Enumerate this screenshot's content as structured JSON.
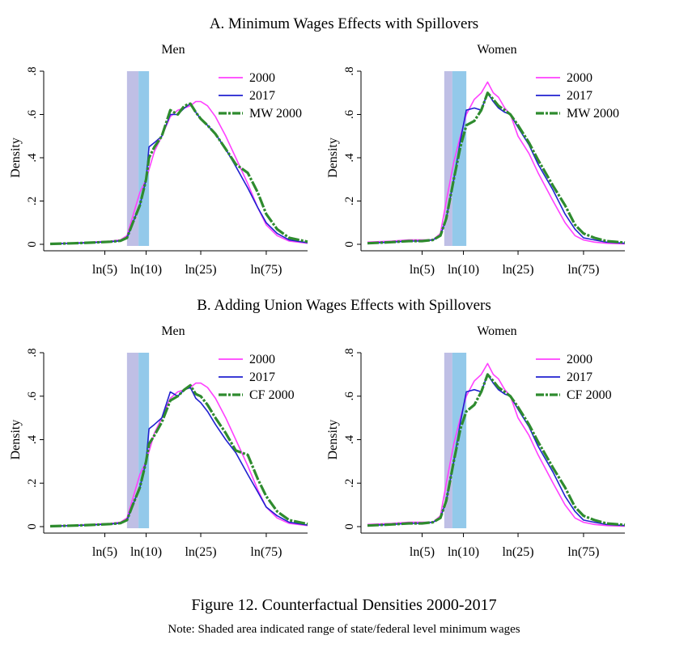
{
  "figure": {
    "title": "Figure 12. Counterfactual Densities 2000-2017",
    "note": "Note: Shaded area indicated range of state/federal level minimum wages"
  },
  "colors": {
    "y2000": "#ff40ff",
    "y2017": "#2020d0",
    "counterfactual": "#2e8b2e",
    "shade_low": "#a9a9dc",
    "shade_high": "#80bfe6"
  },
  "chart_data": [
    {
      "panel_title": "A. Minimum Wages Effects with Spillovers",
      "charts": [
        {
          "type": "line",
          "title": "Men",
          "ylabel": "Density",
          "x_ticks": [
            "ln(5)",
            "ln(10)",
            "ln(25)",
            "ln(75)"
          ],
          "x_tick_wages": [
            5,
            10,
            25,
            75
          ],
          "y_ticks": [
            "0",
            ".2",
            ".4",
            ".6",
            ".8"
          ],
          "y_tick_values": [
            0,
            0.2,
            0.4,
            0.6,
            0.8
          ],
          "xlim_wage": [
            2,
            150
          ],
          "ylim": [
            0,
            0.8
          ],
          "shaded_range_wage": [
            7.25,
            10.5
          ],
          "shade_split_wage": 8.8,
          "legend": [
            "2000",
            "2017",
            "MW 2000"
          ],
          "series": [
            {
              "name": "2000",
              "x_wage": [
                2,
                3,
                4,
                5.5,
                6.5,
                7.25,
                8,
                9,
                10,
                11.5,
                13,
                15,
                17,
                19,
                21,
                23,
                25,
                28,
                32,
                38,
                45,
                55,
                65,
                75,
                90,
                110,
                150
              ],
              "y": [
                0.003,
                0.006,
                0.01,
                0.015,
                0.02,
                0.04,
                0.13,
                0.24,
                0.3,
                0.43,
                0.5,
                0.59,
                0.62,
                0.63,
                0.64,
                0.66,
                0.66,
                0.64,
                0.59,
                0.5,
                0.4,
                0.28,
                0.17,
                0.09,
                0.04,
                0.015,
                0.005
              ]
            },
            {
              "name": "2017",
              "x_wage": [
                2,
                3,
                4,
                5.5,
                6.5,
                7.25,
                8,
                9,
                10,
                10.5,
                11.5,
                13,
                15,
                17,
                19,
                21,
                23,
                25,
                28,
                32,
                38,
                45,
                55,
                65,
                75,
                90,
                110,
                150
              ],
              "y": [
                0.002,
                0.005,
                0.008,
                0.012,
                0.016,
                0.03,
                0.1,
                0.18,
                0.3,
                0.45,
                0.47,
                0.5,
                0.6,
                0.6,
                0.63,
                0.65,
                0.61,
                0.58,
                0.55,
                0.51,
                0.44,
                0.36,
                0.26,
                0.17,
                0.1,
                0.05,
                0.02,
                0.007
              ]
            },
            {
              "name": "MW 2000",
              "x_wage": [
                2,
                3,
                4,
                5.5,
                6.5,
                7.25,
                8,
                9,
                10,
                10.5,
                11.5,
                13,
                15,
                17,
                19,
                21,
                23,
                25,
                28,
                32,
                38,
                45,
                55,
                65,
                75,
                90,
                110,
                150
              ],
              "y": [
                0.002,
                0.005,
                0.008,
                0.012,
                0.016,
                0.03,
                0.1,
                0.18,
                0.3,
                0.4,
                0.45,
                0.5,
                0.62,
                0.6,
                0.64,
                0.65,
                0.61,
                0.58,
                0.55,
                0.51,
                0.44,
                0.37,
                0.33,
                0.24,
                0.14,
                0.07,
                0.03,
                0.012
              ]
            }
          ]
        },
        {
          "type": "line",
          "title": "Women",
          "ylabel": "Density",
          "x_ticks": [
            "ln(5)",
            "ln(10)",
            "ln(25)",
            "ln(75)"
          ],
          "x_tick_wages": [
            5,
            10,
            25,
            75
          ],
          "y_ticks": [
            "0",
            ".2",
            ".4",
            ".6",
            ".8"
          ],
          "y_tick_values": [
            0,
            0.2,
            0.4,
            0.6,
            0.8
          ],
          "xlim_wage": [
            2,
            150
          ],
          "ylim": [
            0,
            0.8
          ],
          "shaded_range_wage": [
            7.25,
            10.5
          ],
          "shade_split_wage": 8.3,
          "legend": [
            "2000",
            "2017",
            "MW 2000"
          ],
          "series": [
            {
              "name": "2000",
              "x_wage": [
                2,
                3,
                4,
                5,
                6,
                6.8,
                7.5,
                8.5,
                9.5,
                10.5,
                12,
                13.5,
                15,
                16.5,
                18,
                20,
                22,
                25,
                30,
                35,
                45,
                55,
                65,
                75,
                90,
                110,
                150
              ],
              "y": [
                0.01,
                0.015,
                0.02,
                0.02,
                0.02,
                0.05,
                0.2,
                0.38,
                0.5,
                0.6,
                0.67,
                0.7,
                0.75,
                0.7,
                0.68,
                0.63,
                0.6,
                0.5,
                0.42,
                0.33,
                0.2,
                0.1,
                0.04,
                0.02,
                0.01,
                0.005,
                0.002
              ]
            },
            {
              "name": "2017",
              "x_wage": [
                2,
                3,
                4,
                5,
                6,
                6.8,
                7.5,
                8.5,
                9.5,
                10.5,
                12,
                13.5,
                15,
                16.5,
                18,
                20,
                22,
                25,
                30,
                35,
                45,
                55,
                65,
                75,
                90,
                110,
                150
              ],
              "y": [
                0.005,
                0.01,
                0.015,
                0.015,
                0.02,
                0.04,
                0.12,
                0.3,
                0.48,
                0.62,
                0.63,
                0.62,
                0.7,
                0.66,
                0.63,
                0.61,
                0.6,
                0.54,
                0.46,
                0.37,
                0.25,
                0.14,
                0.07,
                0.03,
                0.02,
                0.01,
                0.005
              ]
            },
            {
              "name": "MW 2000",
              "x_wage": [
                2,
                3,
                4,
                5,
                6,
                6.8,
                7.5,
                8.5,
                9.5,
                10.5,
                12,
                13.5,
                15,
                16.5,
                18,
                20,
                22,
                25,
                30,
                35,
                45,
                55,
                65,
                75,
                90,
                110,
                150
              ],
              "y": [
                0.005,
                0.01,
                0.015,
                0.015,
                0.02,
                0.04,
                0.12,
                0.3,
                0.45,
                0.55,
                0.57,
                0.62,
                0.7,
                0.67,
                0.64,
                0.62,
                0.6,
                0.55,
                0.47,
                0.39,
                0.27,
                0.18,
                0.09,
                0.05,
                0.03,
                0.015,
                0.008
              ]
            }
          ]
        }
      ]
    },
    {
      "panel_title": "B. Adding Union Wages Effects with Spillovers",
      "charts": [
        {
          "type": "line",
          "title": "Men",
          "ylabel": "Density",
          "x_ticks": [
            "ln(5)",
            "ln(10)",
            "ln(25)",
            "ln(75)"
          ],
          "x_tick_wages": [
            5,
            10,
            25,
            75
          ],
          "y_ticks": [
            "0",
            ".2",
            ".4",
            ".6",
            ".8"
          ],
          "y_tick_values": [
            0,
            0.2,
            0.4,
            0.6,
            0.8
          ],
          "xlim_wage": [
            2,
            150
          ],
          "ylim": [
            0,
            0.8
          ],
          "shaded_range_wage": [
            7.25,
            10.5
          ],
          "shade_split_wage": 8.8,
          "legend": [
            "2000",
            "2017",
            "CF 2000"
          ],
          "series": [
            {
              "name": "2000",
              "x_wage": [
                2,
                3,
                4,
                5.5,
                6.5,
                7.25,
                8,
                9,
                10,
                11.5,
                13,
                15,
                17,
                19,
                21,
                23,
                25,
                28,
                32,
                38,
                45,
                55,
                65,
                75,
                90,
                110,
                150
              ],
              "y": [
                0.003,
                0.006,
                0.01,
                0.015,
                0.02,
                0.04,
                0.13,
                0.24,
                0.3,
                0.43,
                0.5,
                0.59,
                0.62,
                0.63,
                0.64,
                0.66,
                0.66,
                0.64,
                0.59,
                0.5,
                0.4,
                0.28,
                0.17,
                0.09,
                0.04,
                0.015,
                0.005
              ]
            },
            {
              "name": "2017",
              "x_wage": [
                2,
                3,
                4,
                5.5,
                6.5,
                7.25,
                8,
                9,
                10,
                10.5,
                11.5,
                13,
                15,
                17,
                19,
                21,
                23,
                25,
                28,
                32,
                38,
                45,
                55,
                65,
                75,
                90,
                110,
                150
              ],
              "y": [
                0.002,
                0.005,
                0.008,
                0.012,
                0.016,
                0.03,
                0.1,
                0.18,
                0.3,
                0.45,
                0.47,
                0.5,
                0.62,
                0.6,
                0.63,
                0.64,
                0.59,
                0.57,
                0.53,
                0.47,
                0.4,
                0.34,
                0.24,
                0.16,
                0.09,
                0.05,
                0.02,
                0.007
              ]
            },
            {
              "name": "CF 2000",
              "x_wage": [
                2,
                3,
                4,
                5.5,
                6.5,
                7.25,
                8,
                9,
                10,
                10.5,
                11.5,
                13,
                15,
                17,
                19,
                21,
                23,
                25,
                28,
                32,
                38,
                45,
                55,
                65,
                75,
                90,
                110,
                150
              ],
              "y": [
                0.002,
                0.005,
                0.008,
                0.012,
                0.016,
                0.03,
                0.1,
                0.18,
                0.3,
                0.38,
                0.42,
                0.48,
                0.58,
                0.6,
                0.63,
                0.65,
                0.61,
                0.6,
                0.56,
                0.5,
                0.43,
                0.35,
                0.33,
                0.22,
                0.14,
                0.07,
                0.03,
                0.012
              ]
            }
          ]
        },
        {
          "type": "line",
          "title": "Women",
          "ylabel": "Density",
          "x_ticks": [
            "ln(5)",
            "ln(10)",
            "ln(25)",
            "ln(75)"
          ],
          "x_tick_wages": [
            5,
            10,
            25,
            75
          ],
          "y_ticks": [
            "0",
            ".2",
            ".4",
            ".6",
            ".8"
          ],
          "y_tick_values": [
            0,
            0.2,
            0.4,
            0.6,
            0.8
          ],
          "xlim_wage": [
            2,
            150
          ],
          "ylim": [
            0,
            0.8
          ],
          "shaded_range_wage": [
            7.25,
            10.5
          ],
          "shade_split_wage": 8.3,
          "legend": [
            "2000",
            "2017",
            "CF 2000"
          ],
          "series": [
            {
              "name": "2000",
              "x_wage": [
                2,
                3,
                4,
                5,
                6,
                6.8,
                7.5,
                8.5,
                9.5,
                10.5,
                12,
                13.5,
                15,
                16.5,
                18,
                20,
                22,
                25,
                30,
                35,
                45,
                55,
                65,
                75,
                90,
                110,
                150
              ],
              "y": [
                0.01,
                0.015,
                0.02,
                0.02,
                0.02,
                0.05,
                0.2,
                0.38,
                0.5,
                0.6,
                0.67,
                0.7,
                0.75,
                0.7,
                0.68,
                0.63,
                0.6,
                0.5,
                0.42,
                0.33,
                0.2,
                0.1,
                0.04,
                0.02,
                0.01,
                0.005,
                0.002
              ]
            },
            {
              "name": "2017",
              "x_wage": [
                2,
                3,
                4,
                5,
                6,
                6.8,
                7.5,
                8.5,
                9.5,
                10.5,
                12,
                13.5,
                15,
                16.5,
                18,
                20,
                22,
                25,
                30,
                35,
                45,
                55,
                65,
                75,
                90,
                110,
                150
              ],
              "y": [
                0.005,
                0.01,
                0.015,
                0.015,
                0.02,
                0.04,
                0.12,
                0.3,
                0.48,
                0.62,
                0.63,
                0.62,
                0.7,
                0.66,
                0.63,
                0.61,
                0.6,
                0.54,
                0.46,
                0.37,
                0.25,
                0.14,
                0.07,
                0.03,
                0.02,
                0.01,
                0.005
              ]
            },
            {
              "name": "CF 2000",
              "x_wage": [
                2,
                3,
                4,
                5,
                6,
                6.8,
                7.5,
                8.5,
                9.5,
                10.5,
                12,
                13.5,
                15,
                16.5,
                18,
                20,
                22,
                25,
                30,
                35,
                45,
                55,
                65,
                75,
                90,
                110,
                150
              ],
              "y": [
                0.005,
                0.01,
                0.015,
                0.015,
                0.02,
                0.04,
                0.12,
                0.3,
                0.45,
                0.53,
                0.56,
                0.62,
                0.7,
                0.67,
                0.64,
                0.62,
                0.6,
                0.55,
                0.47,
                0.39,
                0.27,
                0.18,
                0.09,
                0.05,
                0.03,
                0.015,
                0.008
              ]
            }
          ]
        }
      ]
    }
  ]
}
